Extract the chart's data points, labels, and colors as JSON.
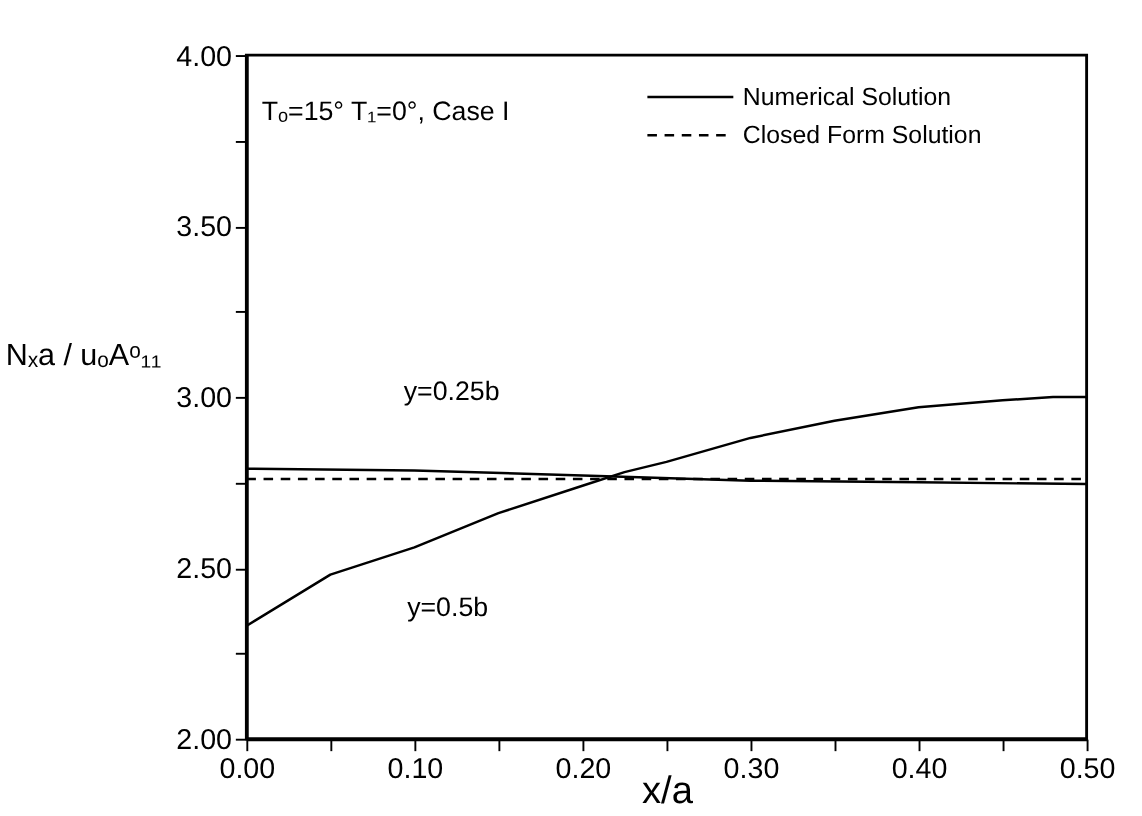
{
  "chart_data": {
    "type": "line",
    "xlabel": "x/a",
    "ylabel": "Nₓa / uₒAᵒ₁₁",
    "xlim": [
      0,
      0.5
    ],
    "ylim": [
      2,
      4
    ],
    "xticks": [
      {
        "value": 0,
        "label": "0.00"
      },
      {
        "value": 0.05,
        "label": null
      },
      {
        "value": 0.1,
        "label": "0.10"
      },
      {
        "value": 0.15,
        "label": null
      },
      {
        "value": 0.2,
        "label": "0.20"
      },
      {
        "value": 0.25,
        "label": null
      },
      {
        "value": 0.3,
        "label": "0.30"
      },
      {
        "value": 0.35,
        "label": null
      },
      {
        "value": 0.4,
        "label": "0.40"
      },
      {
        "value": 0.45,
        "label": null
      },
      {
        "value": 0.5,
        "label": "0.50"
      }
    ],
    "yticks": [
      {
        "value": 2,
        "label": "2.00"
      },
      {
        "value": 2.25,
        "label": null
      },
      {
        "value": 2.5,
        "label": "2.50"
      },
      {
        "value": 2.75,
        "label": null
      },
      {
        "value": 3,
        "label": "3.00"
      },
      {
        "value": 3.25,
        "label": null
      },
      {
        "value": 3.5,
        "label": "3.50"
      },
      {
        "value": 3.75,
        "label": null
      },
      {
        "value": 4,
        "label": "4.00"
      }
    ],
    "grid": false,
    "legend": "top right",
    "series": [
      {
        "name": "Numerical Solution",
        "color": "#000000",
        "line_style": "solid",
        "x": [
          0,
          0.05,
          0.1,
          0.15,
          0.2,
          0.225,
          0.25,
          0.3,
          0.35,
          0.4,
          0.45,
          0.48,
          0.5
        ],
        "values": [
          2.33,
          2.48,
          2.56,
          2.66,
          2.74,
          2.78,
          2.81,
          2.88,
          2.93,
          2.97,
          2.99,
          3.0,
          3.0
        ]
      },
      {
        "color": "#000000",
        "line_style": "solid",
        "x": [
          0,
          0.1,
          0.2,
          0.3,
          0.4,
          0.5
        ],
        "values": [
          2.79,
          2.785,
          2.77,
          2.755,
          2.75,
          2.745
        ]
      },
      {
        "name": "Closed Form Solution",
        "color": "#000000",
        "line_style": "dashed",
        "x": [
          0,
          0.5
        ],
        "values": [
          2.76,
          2.76
        ]
      }
    ],
    "annotations": [
      "Tₒ=15° T₁=0°, Case I",
      {
        "text": "y=0.25b",
        "x": 0.08,
        "y": 2.79
      },
      {
        "text": "y=0.5b",
        "x": 0.09,
        "y": 2.55
      }
    ]
  }
}
